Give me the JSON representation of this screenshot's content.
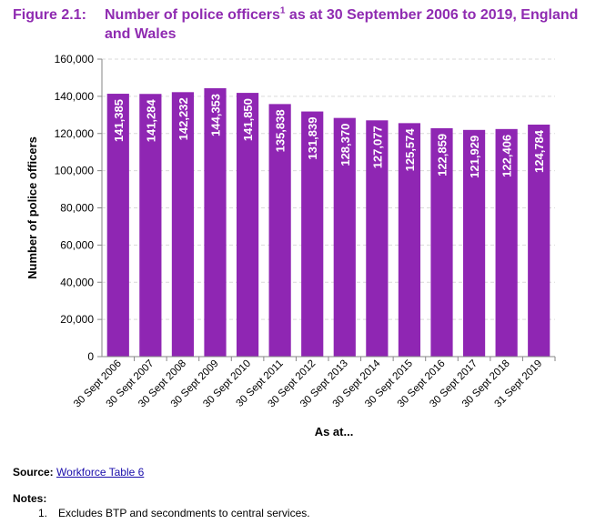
{
  "figure": {
    "label": "Figure 2.1:",
    "title": "Number of police officers",
    "title_sup": "1",
    "title_rest": " as at 30 September 2006 to 2019, England and Wales"
  },
  "chart_data": {
    "type": "bar",
    "title": "Number of police officers as at 30 September 2006 to 2019, England and Wales",
    "xlabel": "As at...",
    "ylabel": "Number of police officers",
    "ylim": [
      0,
      160000
    ],
    "yticks": [
      0,
      20000,
      40000,
      60000,
      80000,
      100000,
      120000,
      140000,
      160000
    ],
    "ytick_labels": [
      "0",
      "20,000",
      "40,000",
      "60,000",
      "80,000",
      "100,000",
      "120,000",
      "140,000",
      "160,000"
    ],
    "grid": true,
    "categories": [
      "30 Sept 2006",
      "30 Sept 2007",
      "30 Sept 2008",
      "30 Sept 2009",
      "30 Sept 2010",
      "30 Sept 2011",
      "30 Sept 2012",
      "30 Sept 2013",
      "30 Sept 2014",
      "30 Sept 2015",
      "30 Sept 2016",
      "30 Sept 2017",
      "30 Sept 2018",
      "31 Sept 2019"
    ],
    "values": [
      141385,
      141284,
      142232,
      144353,
      141850,
      135838,
      131839,
      128370,
      127077,
      125574,
      122859,
      121929,
      122406,
      124784
    ],
    "data_labels": [
      "141,385",
      "141,284",
      "142,232",
      "144,353",
      "141,850",
      "135,838",
      "131,839",
      "128,370",
      "127,077",
      "125,574",
      "122,859",
      "121,929",
      "122,406",
      "124,784"
    ],
    "bar_color": "#8f26b3"
  },
  "source": {
    "label": "Source:",
    "link_text": "Workforce Table 6"
  },
  "notes": {
    "title": "Notes:",
    "items": [
      {
        "number": "1.",
        "text": "Excludes BTP and secondments to central services."
      }
    ]
  },
  "colors": {
    "title": "#8f2bb1",
    "bar": "#8f26b3",
    "grid": "#d9d9d9",
    "axis": "#868686"
  }
}
